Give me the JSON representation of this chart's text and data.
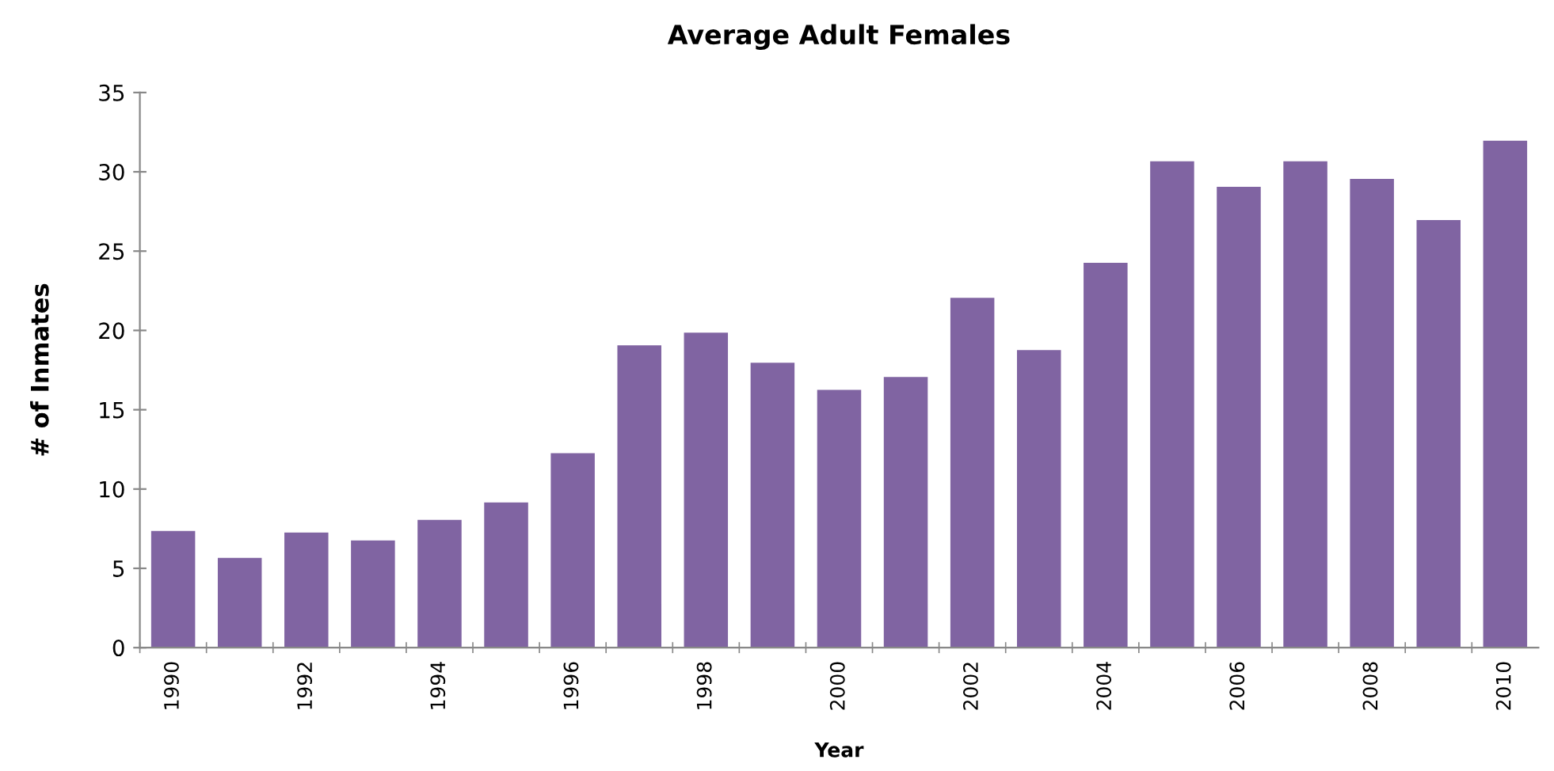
{
  "chart_data": {
    "type": "bar",
    "title": "Average Adult Females",
    "xlabel": "Year",
    "ylabel": "# of Inmates",
    "categories": [
      "1990",
      null,
      "1992",
      null,
      "1994",
      null,
      "1996",
      null,
      "1998",
      null,
      "2000",
      null,
      "2002",
      null,
      "2004",
      null,
      "2006",
      null,
      "2008",
      null,
      "2010"
    ],
    "values": [
      7.4,
      5.7,
      7.3,
      6.8,
      8.1,
      9.2,
      12.3,
      19.1,
      19.9,
      18.0,
      16.3,
      17.1,
      22.1,
      18.8,
      24.3,
      30.7,
      29.1,
      30.7,
      29.6,
      27.0,
      32.0
    ],
    "color": "#8064a2",
    "ylim": [
      0,
      35
    ],
    "yticks": [
      0,
      5,
      10,
      15,
      20,
      25,
      30,
      35
    ],
    "grid": false,
    "legend": false
  }
}
